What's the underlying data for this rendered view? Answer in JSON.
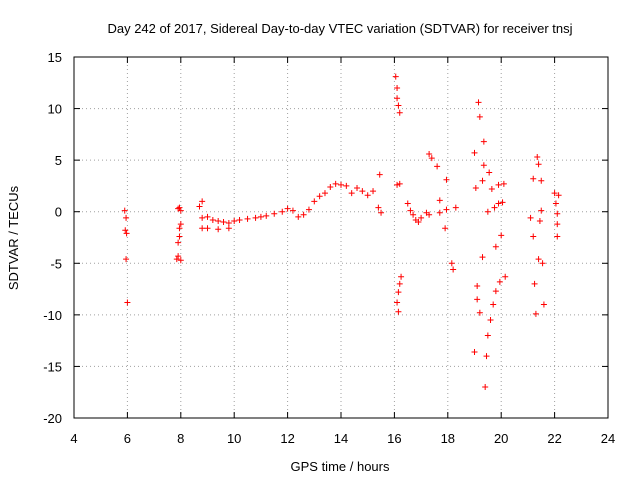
{
  "chart_data": {
    "type": "scatter",
    "title": "Day 242 of 2017, Sidereal Day-to-day VTEC variation (SDTVAR) for receiver tnsj",
    "xlabel": "GPS time / hours",
    "ylabel": "SDTVAR / TECUs",
    "xlim": [
      4,
      24
    ],
    "ylim": [
      -20,
      15
    ],
    "xticks": [
      4,
      6,
      8,
      10,
      12,
      14,
      16,
      18,
      20,
      22,
      24
    ],
    "yticks": [
      -20,
      -15,
      -10,
      -5,
      0,
      5,
      10,
      15
    ],
    "xtick_labels": [
      "4",
      "6",
      "8",
      "10",
      "12",
      "14",
      "16",
      "18",
      "20",
      "22",
      "24"
    ],
    "ytick_labels": [
      "-20",
      "-15",
      "-10",
      "-5",
      "0",
      "5",
      "10",
      "15"
    ],
    "grid": true,
    "marker": "+",
    "color": "#ff0000",
    "series": [
      {
        "name": "SDTVAR",
        "points": [
          [
            5.9,
            0.1
          ],
          [
            5.95,
            -0.6
          ],
          [
            5.92,
            -1.8
          ],
          [
            5.97,
            -2.1
          ],
          [
            5.95,
            -4.6
          ],
          [
            6.0,
            -8.8
          ],
          [
            7.85,
            -4.6
          ],
          [
            7.9,
            -4.3
          ],
          [
            7.9,
            -3.0
          ],
          [
            7.95,
            -2.4
          ],
          [
            7.95,
            -1.6
          ],
          [
            8.0,
            -1.2
          ],
          [
            7.9,
            0.3
          ],
          [
            7.95,
            0.4
          ],
          [
            8.0,
            0.1
          ],
          [
            8.0,
            -4.7
          ],
          [
            8.7,
            0.5
          ],
          [
            8.8,
            -0.6
          ],
          [
            8.8,
            1.0
          ],
          [
            8.8,
            -1.6
          ],
          [
            9.0,
            -0.5
          ],
          [
            9.0,
            -1.6
          ],
          [
            9.2,
            -0.8
          ],
          [
            9.4,
            -0.9
          ],
          [
            9.4,
            -1.7
          ],
          [
            9.6,
            -1.0
          ],
          [
            9.8,
            -1.1
          ],
          [
            9.8,
            -1.6
          ],
          [
            10.0,
            -0.9
          ],
          [
            10.2,
            -0.8
          ],
          [
            10.5,
            -0.7
          ],
          [
            10.8,
            -0.6
          ],
          [
            11.0,
            -0.5
          ],
          [
            11.2,
            -0.4
          ],
          [
            11.5,
            -0.2
          ],
          [
            11.8,
            0.0
          ],
          [
            12.0,
            0.3
          ],
          [
            12.2,
            0.1
          ],
          [
            12.4,
            -0.5
          ],
          [
            12.6,
            -0.3
          ],
          [
            12.8,
            0.2
          ],
          [
            13.0,
            1.0
          ],
          [
            13.2,
            1.5
          ],
          [
            13.4,
            1.8
          ],
          [
            13.6,
            2.4
          ],
          [
            13.8,
            2.7
          ],
          [
            14.0,
            2.6
          ],
          [
            14.2,
            2.5
          ],
          [
            14.4,
            1.8
          ],
          [
            14.6,
            2.3
          ],
          [
            14.8,
            2.0
          ],
          [
            15.0,
            1.6
          ],
          [
            15.2,
            2.0
          ],
          [
            15.4,
            0.4
          ],
          [
            15.45,
            3.6
          ],
          [
            15.5,
            -0.1
          ],
          [
            16.05,
            13.1
          ],
          [
            16.1,
            12.0
          ],
          [
            16.1,
            11.0
          ],
          [
            16.15,
            10.3
          ],
          [
            16.2,
            9.6
          ],
          [
            16.1,
            2.6
          ],
          [
            16.2,
            2.7
          ],
          [
            16.15,
            -9.7
          ],
          [
            16.1,
            -8.8
          ],
          [
            16.15,
            -7.8
          ],
          [
            16.2,
            -7.0
          ],
          [
            16.25,
            -6.3
          ],
          [
            16.5,
            0.8
          ],
          [
            16.6,
            0.1
          ],
          [
            16.7,
            -0.3
          ],
          [
            16.8,
            -0.8
          ],
          [
            16.9,
            -1.0
          ],
          [
            17.0,
            -0.6
          ],
          [
            17.2,
            -0.1
          ],
          [
            17.3,
            -0.3
          ],
          [
            17.3,
            5.6
          ],
          [
            17.4,
            5.2
          ],
          [
            17.6,
            4.4
          ],
          [
            17.7,
            1.1
          ],
          [
            17.7,
            -0.1
          ],
          [
            17.9,
            -1.6
          ],
          [
            17.95,
            3.1
          ],
          [
            17.95,
            0.2
          ],
          [
            18.15,
            -5.0
          ],
          [
            18.2,
            -5.6
          ],
          [
            18.3,
            0.4
          ],
          [
            19.0,
            5.7
          ],
          [
            19.0,
            -13.6
          ],
          [
            19.05,
            2.3
          ],
          [
            19.1,
            -7.2
          ],
          [
            19.1,
            -8.5
          ],
          [
            19.15,
            10.6
          ],
          [
            19.2,
            9.2
          ],
          [
            19.2,
            -9.8
          ],
          [
            19.3,
            3.0
          ],
          [
            19.3,
            -4.4
          ],
          [
            19.35,
            6.8
          ],
          [
            19.35,
            4.5
          ],
          [
            19.4,
            -17.0
          ],
          [
            19.45,
            -14.0
          ],
          [
            19.5,
            -12.0
          ],
          [
            19.5,
            0.0
          ],
          [
            19.55,
            3.8
          ],
          [
            19.6,
            -10.5
          ],
          [
            19.65,
            2.2
          ],
          [
            19.7,
            -9.0
          ],
          [
            19.75,
            0.4
          ],
          [
            19.8,
            -3.4
          ],
          [
            19.8,
            -7.7
          ],
          [
            19.9,
            2.6
          ],
          [
            19.9,
            0.8
          ],
          [
            19.95,
            -6.8
          ],
          [
            20.0,
            -2.3
          ],
          [
            20.05,
            0.9
          ],
          [
            20.1,
            2.7
          ],
          [
            20.15,
            -6.3
          ],
          [
            21.1,
            -0.6
          ],
          [
            21.2,
            3.2
          ],
          [
            21.2,
            -2.4
          ],
          [
            21.25,
            -7.0
          ],
          [
            21.3,
            -9.9
          ],
          [
            21.35,
            5.3
          ],
          [
            21.4,
            4.6
          ],
          [
            21.4,
            -4.6
          ],
          [
            21.45,
            -0.9
          ],
          [
            21.5,
            0.1
          ],
          [
            21.5,
            3.0
          ],
          [
            21.55,
            -5.0
          ],
          [
            21.6,
            -9.0
          ],
          [
            22.0,
            1.8
          ],
          [
            22.05,
            0.8
          ],
          [
            22.1,
            -0.2
          ],
          [
            22.1,
            -2.4
          ],
          [
            22.15,
            1.6
          ],
          [
            22.1,
            -1.2
          ]
        ]
      }
    ]
  }
}
